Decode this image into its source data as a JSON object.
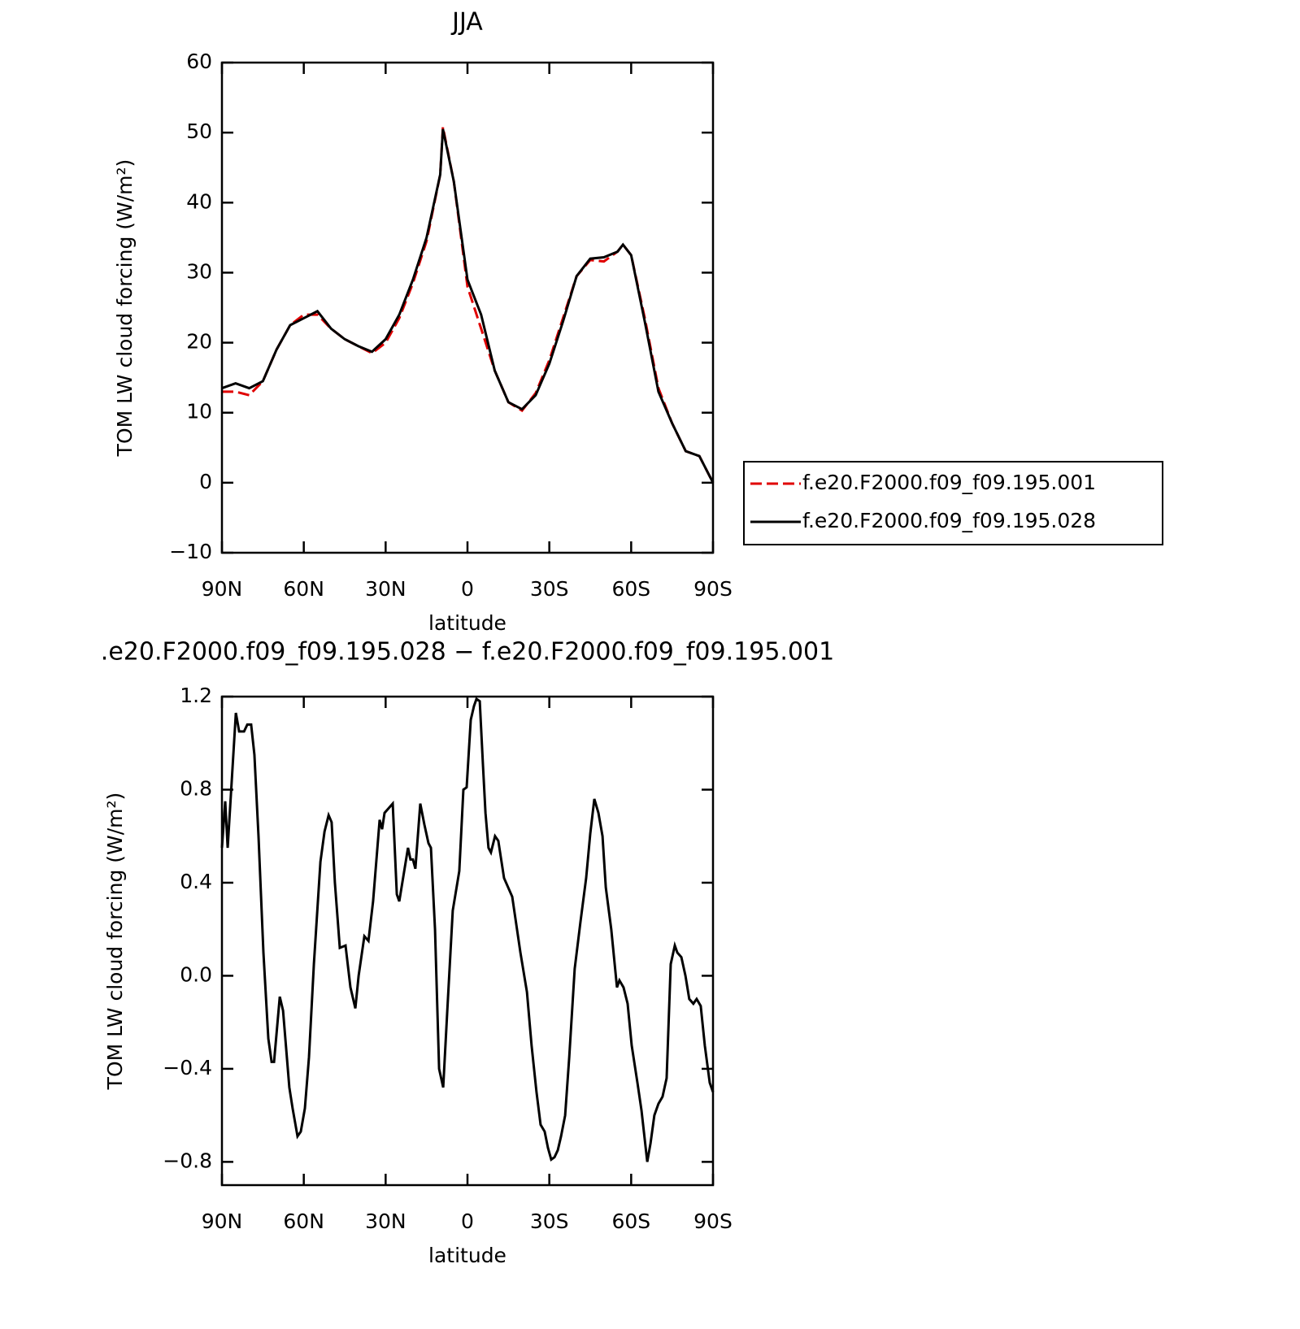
{
  "chart_data": [
    {
      "type": "line",
      "title": "JJA",
      "xlabel": "latitude",
      "ylabel": "TOM LW cloud forcing (W/m²)",
      "x": [
        90,
        85,
        80,
        75,
        70,
        65,
        60,
        55,
        50,
        45,
        40,
        35,
        30,
        25,
        20,
        15,
        10,
        9,
        5,
        0,
        -5,
        -10,
        -15,
        -20,
        -25,
        -30,
        -35,
        -40,
        -45,
        -50,
        -55,
        -57,
        -60,
        -65,
        -70,
        -75,
        -80,
        -85,
        -90
      ],
      "series": [
        {
          "name": "f.e20.F2000.f09_f09.195.001",
          "color": "#e00000",
          "dash": true,
          "values": [
            13,
            13,
            12.5,
            14.5,
            19,
            22.5,
            24,
            24,
            22,
            20.5,
            19.5,
            18.5,
            20,
            23.5,
            28.5,
            34.5,
            44,
            50.8,
            43,
            28,
            22,
            16,
            11.5,
            10.3,
            12.8,
            17.5,
            23.5,
            29.5,
            31.8,
            31.6,
            33,
            34,
            32.5,
            23.5,
            13.5,
            8.5,
            4.5,
            3.8,
            0
          ]
        },
        {
          "name": "f.e20.F2000.f09_f09.195.028",
          "color": "#000000",
          "dash": false,
          "values": [
            13.5,
            14.2,
            13.5,
            14.5,
            19,
            22.5,
            23.5,
            24.5,
            22,
            20.5,
            19.5,
            18.7,
            20.5,
            24,
            29,
            35,
            44,
            50.5,
            43,
            29,
            24,
            16,
            11.5,
            10.5,
            12.5,
            17,
            23,
            29.5,
            32,
            32.2,
            33,
            34,
            32.5,
            23,
            13,
            8.5,
            4.5,
            3.8,
            0
          ]
        }
      ],
      "xlim": [
        90,
        -90
      ],
      "xticks": [
        {
          "value": 90,
          "label": "90N"
        },
        {
          "value": 60,
          "label": "60N"
        },
        {
          "value": 30,
          "label": "30N"
        },
        0,
        {
          "value": -30,
          "label": "30S"
        },
        {
          "value": -60,
          "label": "60S"
        },
        {
          "value": -90,
          "label": "90S"
        }
      ],
      "ylim": [
        -10,
        60
      ],
      "yticks": [
        {
          "value": -10,
          "label": "−10"
        },
        0,
        10,
        20,
        30,
        40,
        50,
        60
      ],
      "legend": "outside-right"
    },
    {
      "type": "line",
      "title": ".e20.F2000.f09_f09.195.028 − f.e20.F2000.f09_f09.195.001",
      "xlabel": "latitude",
      "ylabel": "TOM LW cloud forcing (W/m²)",
      "x": [
        90,
        88.8,
        87.9,
        84.9,
        83.7,
        81.9,
        80.7,
        79.3,
        78.1,
        76.6,
        74.8,
        73.0,
        71.8,
        70.9,
        68.8,
        67.6,
        65.3,
        64.1,
        62.3,
        61.1,
        59.6,
        58.1,
        56.3,
        53.9,
        52.4,
        50.9,
        49.8,
        48.6,
        46.8,
        44.7,
        42.9,
        41.1,
        39.9,
        37.8,
        36.3,
        34.6,
        32.2,
        31.3,
        30.4,
        28.9,
        27.4,
        25.9,
        25.0,
        21.8,
        20.9,
        20.0,
        19.1,
        17.3,
        15.8,
        14.3,
        13.4,
        11.9,
        10.4,
        8.9,
        7.4,
        5.4,
        3.0,
        1.5,
        0.3,
        -1.2,
        -2.4,
        -3.3,
        -4.5,
        -5.7,
        -6.6,
        -7.7,
        -8.6,
        -10.1,
        -11.3,
        -13.4,
        -14.9,
        -16.4,
        -19.4,
        -21.8,
        -23.5,
        -25.3,
        -26.8,
        -28.3,
        -29.5,
        -30.7,
        -31.9,
        -33.1,
        -34.3,
        -35.8,
        -37.3,
        -39.3,
        -41.4,
        -43.5,
        -45.0,
        -46.5,
        -48.0,
        -49.5,
        -50.7,
        -52.7,
        -54.8,
        -55.7,
        -57.2,
        -58.7,
        -60.2,
        -62.3,
        -63.8,
        -65.9,
        -67.1,
        -68.5,
        -70.0,
        -71.5,
        -73.0,
        -74.5,
        -76.0,
        -76.9,
        -78.4,
        -79.9,
        -81.3,
        -82.8,
        -84.0,
        -85.5,
        -87.0,
        -88.8,
        -90
      ],
      "series": [
        {
          "color": "#000000",
          "dash": false,
          "values": [
            0.55,
            0.75,
            0.55,
            1.13,
            1.05,
            1.05,
            1.08,
            1.08,
            0.95,
            0.6,
            0.1,
            -0.27,
            -0.37,
            -0.37,
            -0.09,
            -0.15,
            -0.48,
            -0.57,
            -0.69,
            -0.67,
            -0.57,
            -0.35,
            0.05,
            0.49,
            0.62,
            0.69,
            0.66,
            0.4,
            0.12,
            0.13,
            -0.05,
            -0.14,
            0.0,
            0.17,
            0.15,
            0.32,
            0.67,
            0.63,
            0.7,
            0.72,
            0.74,
            0.35,
            0.32,
            0.55,
            0.5,
            0.5,
            0.46,
            0.74,
            0.65,
            0.57,
            0.55,
            0.2,
            -0.4,
            -0.48,
            -0.15,
            0.28,
            0.45,
            0.8,
            0.81,
            1.1,
            1.16,
            1.19,
            1.18,
            0.9,
            0.7,
            0.55,
            0.53,
            0.6,
            0.58,
            0.42,
            0.38,
            0.34,
            0.1,
            -0.07,
            -0.3,
            -0.5,
            -0.64,
            -0.67,
            -0.74,
            -0.79,
            -0.78,
            -0.75,
            -0.69,
            -0.6,
            -0.35,
            0.03,
            0.23,
            0.42,
            0.61,
            0.76,
            0.7,
            0.6,
            0.38,
            0.2,
            -0.05,
            -0.02,
            -0.05,
            -0.12,
            -0.3,
            -0.46,
            -0.58,
            -0.8,
            -0.72,
            -0.6,
            -0.55,
            -0.52,
            -0.44,
            0.05,
            0.13,
            0.1,
            0.08,
            0,
            -0.1,
            -0.12,
            -0.1,
            -0.13,
            -0.3,
            -0.46,
            -0.5
          ]
        }
      ],
      "xlim": [
        90,
        -90
      ],
      "xticks": [
        {
          "value": 90,
          "label": "90N"
        },
        {
          "value": 60,
          "label": "60N"
        },
        {
          "value": 30,
          "label": "30N"
        },
        0,
        {
          "value": -30,
          "label": "30S"
        },
        {
          "value": -60,
          "label": "60S"
        },
        {
          "value": -90,
          "label": "90S"
        }
      ],
      "ylim": [
        -0.9,
        1.2
      ],
      "yticks": [
        {
          "value": -0.8,
          "label": "−0.8"
        },
        {
          "value": -0.4,
          "label": "−0.4"
        },
        {
          "value": 0,
          "label": "0.0"
        },
        0.4,
        0.8,
        1.2
      ]
    }
  ]
}
